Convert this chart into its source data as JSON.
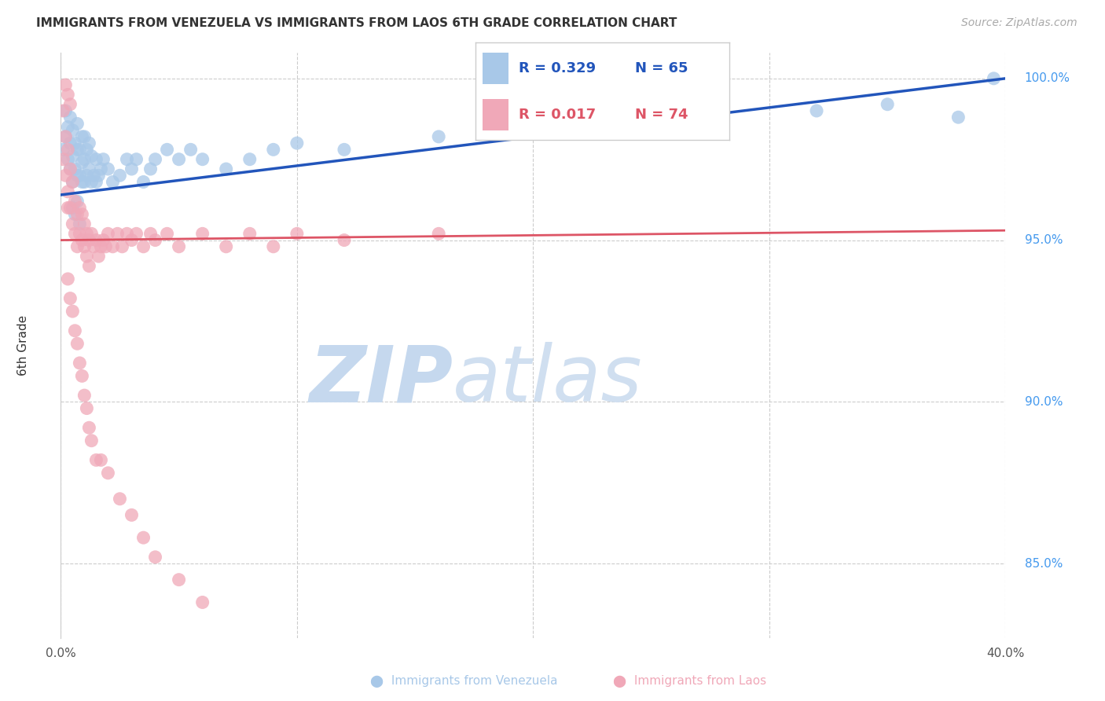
{
  "title": "IMMIGRANTS FROM VENEZUELA VS IMMIGRANTS FROM LAOS 6TH GRADE CORRELATION CHART",
  "source": "Source: ZipAtlas.com",
  "ylabel": "6th Grade",
  "xmin": 0.0,
  "xmax": 0.4,
  "ymin": 0.827,
  "ymax": 1.008,
  "venezuela_color": "#a8c8e8",
  "laos_color": "#f0a8b8",
  "venezuela_line_color": "#2255bb",
  "laos_line_color": "#dd5566",
  "watermark_zip": "ZIP",
  "watermark_atlas": "atlas",
  "watermark_color_zip": "#c5d8ee",
  "watermark_color_atlas": "#c5d8ee",
  "background_color": "#ffffff",
  "grid_color": "#cccccc",
  "tick_label_color": "#4499ee",
  "venezuela_R": 0.329,
  "venezuela_N": 65,
  "laos_R": 0.017,
  "laos_N": 74,
  "venezuela_x": [
    0.001,
    0.002,
    0.002,
    0.003,
    0.003,
    0.004,
    0.004,
    0.004,
    0.005,
    0.005,
    0.005,
    0.006,
    0.006,
    0.007,
    0.007,
    0.007,
    0.008,
    0.008,
    0.009,
    0.009,
    0.009,
    0.01,
    0.01,
    0.01,
    0.011,
    0.011,
    0.012,
    0.012,
    0.013,
    0.013,
    0.014,
    0.015,
    0.015,
    0.016,
    0.017,
    0.018,
    0.02,
    0.022,
    0.025,
    0.028,
    0.03,
    0.032,
    0.035,
    0.038,
    0.04,
    0.045,
    0.05,
    0.055,
    0.06,
    0.07,
    0.08,
    0.09,
    0.1,
    0.12,
    0.16,
    0.22,
    0.28,
    0.32,
    0.35,
    0.38,
    0.005,
    0.006,
    0.007,
    0.008,
    0.395
  ],
  "venezuela_y": [
    0.978,
    0.982,
    0.99,
    0.975,
    0.985,
    0.972,
    0.98,
    0.988,
    0.968,
    0.976,
    0.984,
    0.972,
    0.98,
    0.97,
    0.978,
    0.986,
    0.97,
    0.978,
    0.968,
    0.974,
    0.982,
    0.968,
    0.975,
    0.982,
    0.97,
    0.978,
    0.972,
    0.98,
    0.968,
    0.976,
    0.97,
    0.968,
    0.975,
    0.97,
    0.972,
    0.975,
    0.972,
    0.968,
    0.97,
    0.975,
    0.972,
    0.975,
    0.968,
    0.972,
    0.975,
    0.978,
    0.975,
    0.978,
    0.975,
    0.972,
    0.975,
    0.978,
    0.98,
    0.978,
    0.982,
    0.985,
    0.988,
    0.99,
    0.992,
    0.988,
    0.96,
    0.958,
    0.962,
    0.955,
    1.0
  ],
  "laos_x": [
    0.001,
    0.001,
    0.002,
    0.002,
    0.003,
    0.003,
    0.003,
    0.004,
    0.004,
    0.005,
    0.005,
    0.006,
    0.006,
    0.007,
    0.007,
    0.008,
    0.008,
    0.009,
    0.009,
    0.01,
    0.01,
    0.011,
    0.011,
    0.012,
    0.012,
    0.013,
    0.014,
    0.015,
    0.016,
    0.017,
    0.018,
    0.019,
    0.02,
    0.022,
    0.024,
    0.026,
    0.028,
    0.03,
    0.032,
    0.035,
    0.038,
    0.04,
    0.045,
    0.05,
    0.06,
    0.07,
    0.08,
    0.09,
    0.1,
    0.12,
    0.003,
    0.004,
    0.005,
    0.006,
    0.007,
    0.008,
    0.009,
    0.01,
    0.011,
    0.012,
    0.013,
    0.015,
    0.017,
    0.02,
    0.025,
    0.03,
    0.035,
    0.04,
    0.05,
    0.06,
    0.002,
    0.003,
    0.004,
    0.16
  ],
  "laos_y": [
    0.99,
    0.975,
    0.982,
    0.97,
    0.978,
    0.965,
    0.96,
    0.972,
    0.96,
    0.968,
    0.955,
    0.962,
    0.952,
    0.958,
    0.948,
    0.96,
    0.952,
    0.958,
    0.95,
    0.955,
    0.948,
    0.952,
    0.945,
    0.95,
    0.942,
    0.952,
    0.948,
    0.95,
    0.945,
    0.948,
    0.95,
    0.948,
    0.952,
    0.948,
    0.952,
    0.948,
    0.952,
    0.95,
    0.952,
    0.948,
    0.952,
    0.95,
    0.952,
    0.948,
    0.952,
    0.948,
    0.952,
    0.948,
    0.952,
    0.95,
    0.938,
    0.932,
    0.928,
    0.922,
    0.918,
    0.912,
    0.908,
    0.902,
    0.898,
    0.892,
    0.888,
    0.882,
    0.882,
    0.878,
    0.87,
    0.865,
    0.858,
    0.852,
    0.845,
    0.838,
    0.998,
    0.995,
    0.992,
    0.952
  ]
}
